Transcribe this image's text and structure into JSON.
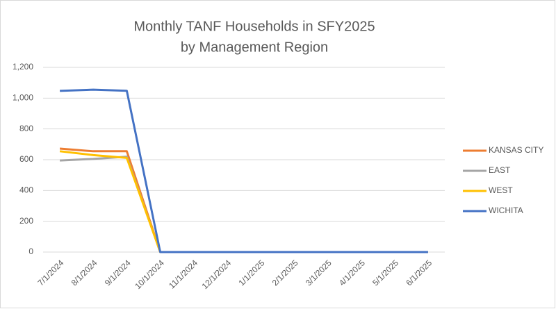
{
  "chart_data": {
    "type": "line",
    "title": [
      "Monthly TANF Households in SFY2025",
      "by Management Region"
    ],
    "categories": [
      "7/1/2024",
      "8/1/2024",
      "9/1/2024",
      "10/1/2024",
      "11/1/2024",
      "12/1/2024",
      "1/1/2025",
      "2/1/2025",
      "3/1/2025",
      "4/1/2025",
      "5/1/2025",
      "6/1/2025"
    ],
    "series": [
      {
        "name": "KANSAS CITY",
        "color": "#ed7d31",
        "values": [
          672,
          655,
          655,
          0,
          0,
          0,
          0,
          0,
          0,
          0,
          0,
          0
        ]
      },
      {
        "name": "EAST",
        "color": "#a5a5a5",
        "values": [
          595,
          605,
          620,
          0,
          0,
          0,
          0,
          0,
          0,
          0,
          0,
          0
        ]
      },
      {
        "name": "WEST",
        "color": "#ffc000",
        "values": [
          655,
          630,
          612,
          0,
          0,
          0,
          0,
          0,
          0,
          0,
          0,
          0
        ]
      },
      {
        "name": "WICHITA",
        "color": "#4472c4",
        "values": [
          1047,
          1055,
          1048,
          0,
          0,
          0,
          0,
          0,
          0,
          0,
          0,
          0
        ]
      }
    ],
    "ylim": [
      0,
      1200
    ],
    "yticks": [
      0,
      200,
      400,
      600,
      800,
      {
        "value": 1000,
        "label": "1,000"
      },
      {
        "value": 1200,
        "label": "1,200"
      }
    ],
    "grid": true,
    "legend": "right"
  }
}
